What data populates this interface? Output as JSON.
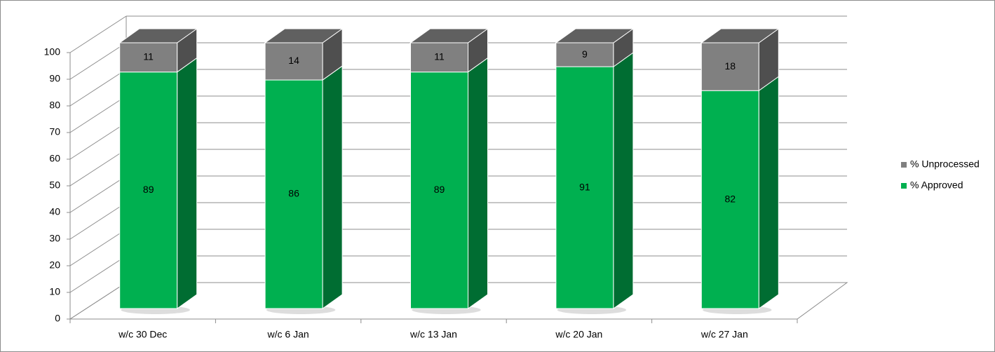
{
  "chart_data": {
    "type": "stacked-bar-3d",
    "categories": [
      "w/c 30 Dec",
      "w/c 6 Jan",
      "w/c 13 Jan",
      "w/c 20 Jan",
      "w/c 27 Jan"
    ],
    "series": [
      {
        "name": "% Approved",
        "color": "#00b050",
        "values": [
          89,
          86,
          89,
          91,
          82
        ]
      },
      {
        "name": "% Unprocessed",
        "color": "#808080",
        "values": [
          11,
          14,
          11,
          9,
          18
        ]
      }
    ],
    "ylim": [
      0,
      100
    ],
    "yticks": [
      0,
      10,
      20,
      30,
      40,
      50,
      60,
      70,
      80,
      90,
      100
    ],
    "grid": true,
    "legend": "right"
  }
}
